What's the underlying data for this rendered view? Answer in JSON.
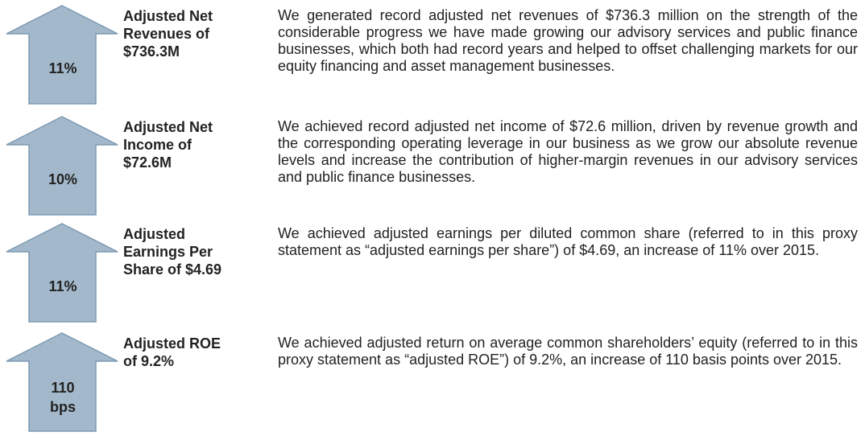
{
  "items": [
    {
      "arrow_label": [
        "11%"
      ],
      "heading": [
        "Adjusted Net",
        "Revenues of",
        "$736.3M"
      ],
      "text": "We generated record adjusted net revenues of $736.3 million on the strength of the considerable progress we have made growing our advisory services and public finance businesses, which both had record years and helped to offset challenging markets for our equity financing and asset management businesses."
    },
    {
      "arrow_label": [
        "10%"
      ],
      "heading": [
        "Adjusted Net",
        "Income of",
        "$72.6M"
      ],
      "text": "We achieved record adjusted net income of $72.6 million, driven by revenue growth and the corresponding operating leverage in our business as we grow our absolute revenue levels and increase the contribution of higher-margin revenues in our advisory services and public finance businesses."
    },
    {
      "arrow_label": [
        "11%"
      ],
      "heading": [
        "Adjusted",
        "Earnings Per",
        "Share of $4.69"
      ],
      "text": "We achieved adjusted earnings per diluted common share (referred to in this proxy statement as “adjusted earnings per share”) of $4.69, an increase of 11% over 2015."
    },
    {
      "arrow_label": [
        "110",
        "bps"
      ],
      "heading": [
        "Adjusted ROE",
        "of 9.2%"
      ],
      "text": "We achieved adjusted return on average common shareholders’ equity (referred to in this proxy statement as “adjusted ROE”) of 9.2%, an increase of 110 basis points over 2015."
    }
  ]
}
